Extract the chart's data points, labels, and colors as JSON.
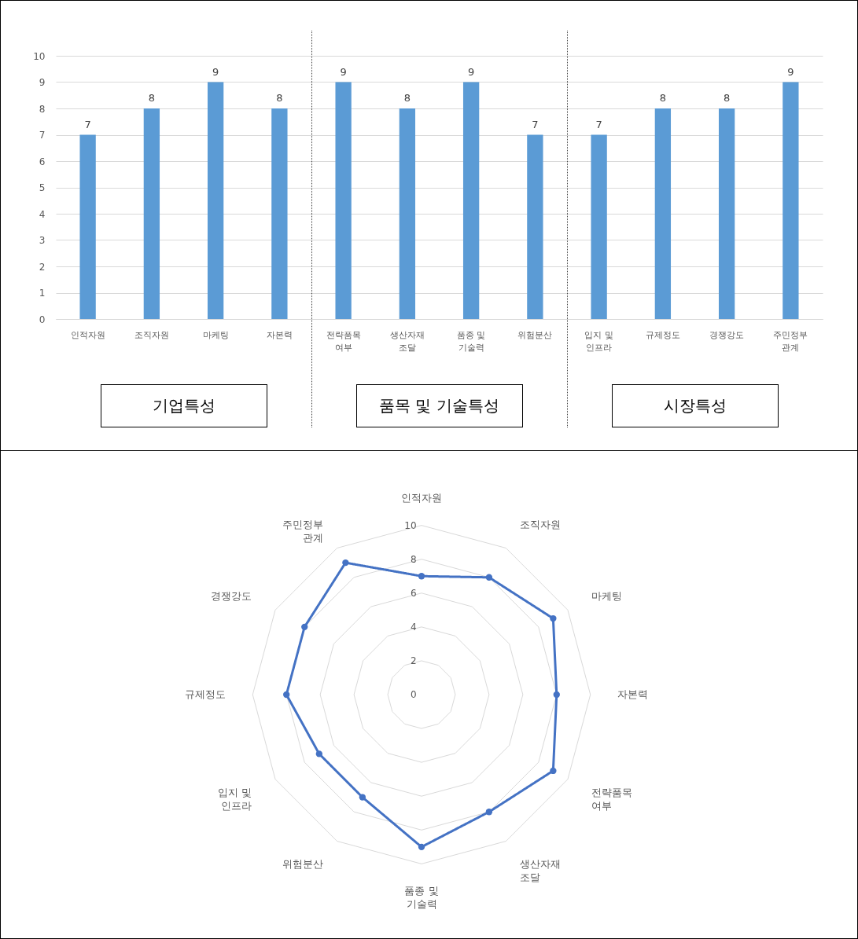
{
  "chart_data": [
    {
      "type": "bar",
      "categories": [
        "인적자원",
        "조직자원",
        "마케팅",
        "자본력",
        "전략품목 여부",
        "생산자재 조달",
        "품종 및 기술력",
        "위험분산",
        "입지 및 인프라",
        "규제정도",
        "경쟁강도",
        "주민정부 관계"
      ],
      "values": [
        7,
        8,
        9,
        8,
        9,
        8,
        9,
        7,
        7,
        8,
        8,
        9
      ],
      "color": "#5b9bd5",
      "ylim": [
        0,
        10
      ],
      "yticks": [
        0,
        1,
        2,
        3,
        4,
        5,
        6,
        7,
        8,
        9,
        10
      ],
      "grid": "y",
      "data_labels": true,
      "annotations": [
        "기업특성",
        "품목 및 기술특성",
        "시장특성"
      ]
    },
    {
      "type": "radar",
      "categories": [
        "인적자원",
        "조직자원",
        "마케팅",
        "자본력",
        "전략품목 여부",
        "생산자재 조달",
        "품종 및 기술력",
        "위험분산",
        "입지 및 인프라",
        "규제정도",
        "경쟁강도",
        "주민정부 관계"
      ],
      "series": [
        {
          "color": "#4472c4",
          "values": [
            7,
            8,
            9,
            8,
            9,
            8,
            9,
            7,
            7,
            8,
            8,
            9
          ]
        }
      ],
      "ylim": [
        0,
        10
      ],
      "yticks": [
        0,
        2,
        4,
        6,
        8,
        10
      ],
      "grid": true,
      "marker": "circle"
    }
  ]
}
